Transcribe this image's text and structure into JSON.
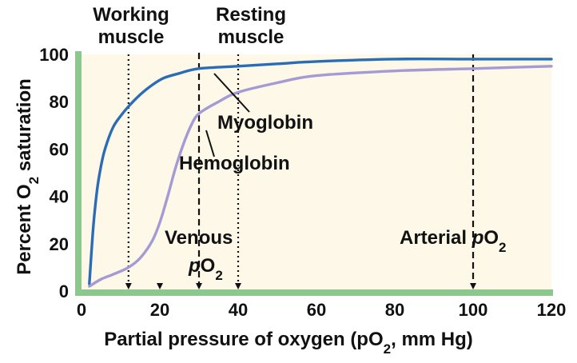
{
  "colors": {
    "background": "#fdf8e8",
    "axis": "#8cc88e",
    "myoglobin": "#2a6db5",
    "hemoglobin": "#a49ad4",
    "marker": "#111111"
  },
  "chart_data": {
    "type": "line",
    "title": "",
    "xlabel": "Partial pressure of oxygen (pO2, mm Hg)",
    "xlabel_parts": {
      "main": "Partial pressure of oxygen (pO",
      "sub": "2",
      "tail": ", mm Hg)"
    },
    "ylabel": "Percent O2 saturation",
    "ylabel_parts": {
      "main": "Percent  O",
      "sub": "2",
      "tail": " saturation"
    },
    "xlim": [
      0,
      120
    ],
    "ylim": [
      0,
      100
    ],
    "xticks": [
      0,
      20,
      40,
      60,
      80,
      100,
      120
    ],
    "yticks": [
      0,
      20,
      40,
      60,
      80,
      100
    ],
    "grid": false,
    "series": [
      {
        "name": "Myoglobin",
        "color_key": "myoglobin",
        "x": [
          2,
          3,
          4,
          5,
          6,
          8,
          10,
          12,
          15,
          18,
          21,
          25,
          30,
          40,
          50,
          60,
          80,
          100,
          120
        ],
        "y": [
          3,
          27,
          43,
          53,
          60,
          69,
          74,
          78,
          83,
          87,
          90,
          92,
          94,
          95,
          96,
          97,
          98,
          98,
          98
        ]
      },
      {
        "name": "Hemoglobin",
        "color_key": "hemoglobin",
        "x": [
          2,
          5,
          8,
          12,
          15,
          18,
          20,
          22,
          24,
          26,
          28,
          30,
          35,
          40,
          50,
          60,
          80,
          100,
          120
        ],
        "y": [
          2,
          5,
          7,
          10,
          14,
          21,
          29,
          40,
          52,
          62,
          70,
          75,
          80,
          84,
          88,
          91,
          93,
          94,
          95
        ]
      }
    ],
    "reference_lines": [
      {
        "x": 12,
        "style": "dotted"
      },
      {
        "x": 30,
        "style": "dashed"
      },
      {
        "x": 40,
        "style": "dotted"
      },
      {
        "x": 100,
        "style": "dashed"
      }
    ],
    "tick_markers": [
      12,
      20
    ],
    "annotations": [
      {
        "key": "working",
        "lines": [
          "Working",
          "muscle"
        ]
      },
      {
        "key": "resting",
        "lines": [
          "Resting",
          "muscle"
        ]
      },
      {
        "key": "myoglobin",
        "text": "Myoglobin"
      },
      {
        "key": "hemoglobin",
        "text": "Hemoglobin"
      },
      {
        "key": "venous",
        "text": "Venous",
        "italic": "p",
        "main": "O",
        "sub": "2"
      },
      {
        "key": "arterial",
        "text": "Arterial ",
        "italic": "p",
        "main": "O",
        "sub": "2"
      }
    ]
  }
}
